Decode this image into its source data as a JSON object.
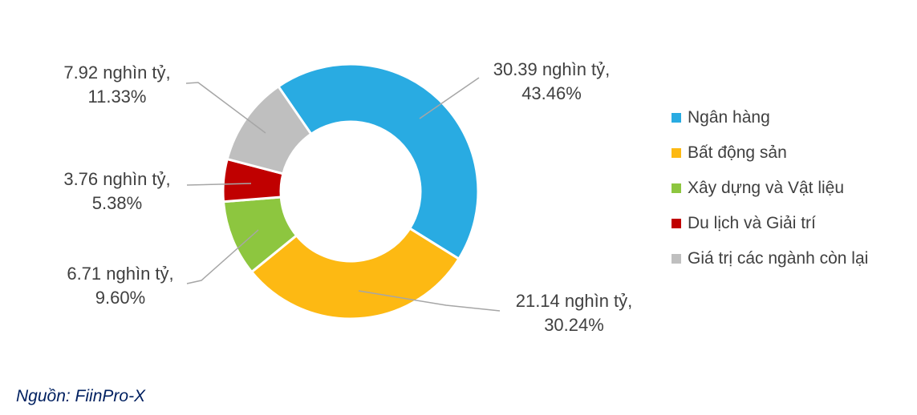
{
  "chart_data": {
    "type": "pie",
    "subtype": "donut",
    "title": "",
    "unit": "nghìn tỷ",
    "categories": [
      "Ngân hàng",
      "Bất động sản",
      "Xây dựng và Vật liệu",
      "Du lịch và Giải trí",
      "Giá trị các ngành còn lại"
    ],
    "values": [
      30.39,
      21.14,
      6.71,
      3.76,
      7.92
    ],
    "percentages": [
      43.46,
      30.24,
      9.6,
      5.38,
      11.33
    ],
    "colors": [
      "#29ABE2",
      "#FDB913",
      "#8DC63F",
      "#C00000",
      "#BFBFBF"
    ],
    "legend_position": "right",
    "direction": "clockwise",
    "start_angle_deg": -34.5,
    "donut_hole_ratio": 0.55,
    "data_label_format": "value nghìn tỷ, percent%"
  },
  "labels": [
    {
      "line1": "30.39 nghìn tỷ,",
      "line2": "43.46%"
    },
    {
      "line1": "21.14 nghìn tỷ,",
      "line2": "30.24%"
    },
    {
      "line1": "6.71 nghìn tỷ,",
      "line2": "9.60%"
    },
    {
      "line1": "3.76 nghìn tỷ,",
      "line2": "5.38%"
    },
    {
      "line1": "7.92 nghìn tỷ,",
      "line2": "11.33%"
    }
  ],
  "legend": {
    "items": [
      {
        "label": "Ngân hàng",
        "color": "#29ABE2"
      },
      {
        "label": "Bất động sản",
        "color": "#FDB913"
      },
      {
        "label": "Xây dựng và Vật liệu",
        "color": "#8DC63F"
      },
      {
        "label": "Du lịch và Giải trí",
        "color": "#C00000"
      },
      {
        "label": "Giá trị các ngành còn lại",
        "color": "#BFBFBF"
      }
    ]
  },
  "source": "Nguồn: FiinPro-X",
  "colors_meta": {
    "label_text": "#404040",
    "legend_text": "#404040",
    "source_text": "#002060",
    "leader_line": "#A6A6A6",
    "slice_border": "#FFFFFF"
  }
}
